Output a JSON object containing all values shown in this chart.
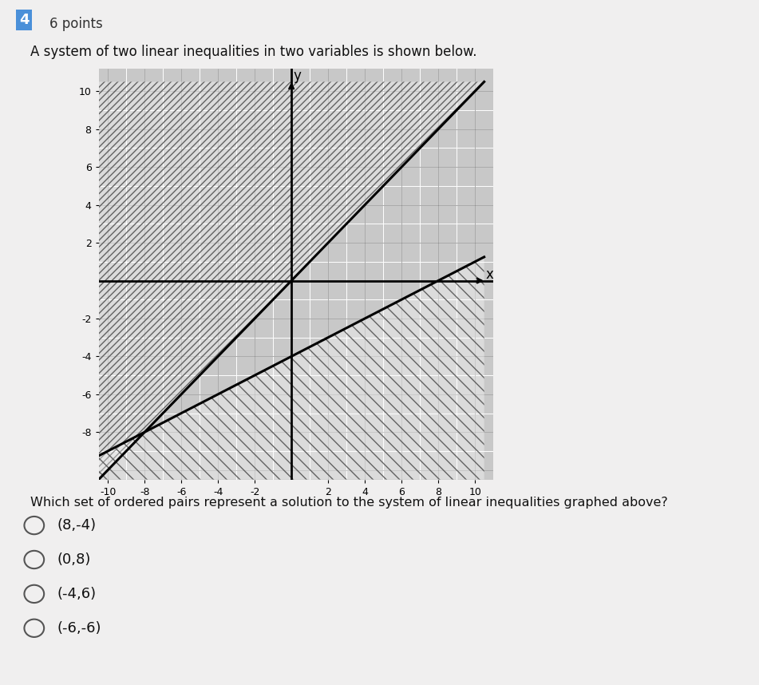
{
  "title": "A system of two linear inequalities in two variables is shown below.",
  "question_number": "4",
  "points": "6 points",
  "xlim": [
    -10,
    10
  ],
  "ylim": [
    -10,
    10
  ],
  "xticks": [
    -10,
    -8,
    -6,
    -4,
    -2,
    2,
    4,
    6,
    8,
    10
  ],
  "yticks": [
    -8,
    -6,
    -4,
    -2,
    2,
    4,
    6,
    8,
    10
  ],
  "line1_slope": 1.0,
  "line1_intercept": 0,
  "line2_slope": 0.5,
  "line2_intercept": -4,
  "answer_choices": [
    "(8,-4)",
    "(0,8)",
    "(-4,6)",
    "(-6,-6)"
  ],
  "bg_color": "#d8d8d8",
  "graph_bg": "#c8c8c8",
  "grid_color": "#999999",
  "hatch_color": "#555555",
  "line_color": "#000000",
  "question_text": "Which set of ordered pairs represent a solution to the system of linear inequalities graphed above?"
}
